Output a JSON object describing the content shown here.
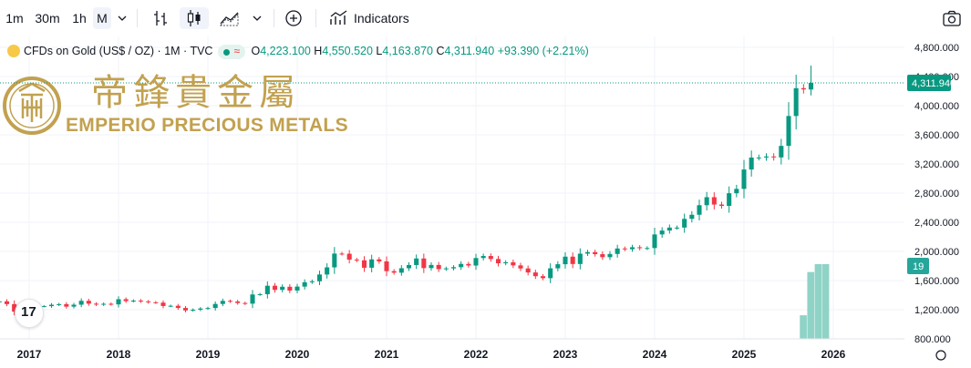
{
  "toolbar": {
    "interval_1m": "1m",
    "interval_30m": "30m",
    "interval_1h": "1h",
    "interval_M": "M",
    "indicators_label": "Indicators"
  },
  "legend": {
    "symbol": "CFDs on Gold (US$ / OZ) · 1M · TVC",
    "open_label": "O",
    "open": "4,223.100",
    "high_label": "H",
    "high": "4,550.520",
    "low_label": "L",
    "low": "4,163.870",
    "close_label": "C",
    "close": "4,311.940",
    "change": "+93.390 (+2.21%)"
  },
  "watermark": {
    "chinese": "帝鋒貴金屬",
    "english": "EMPERIO PRECIOUS METALS"
  },
  "colors": {
    "up": "#089981",
    "down": "#f23645",
    "volume": "#8fd3c7",
    "grid": "#f0f3fa",
    "gold": "#c2a14f",
    "price_line": "#089981"
  },
  "chart_data": {
    "type": "candlestick",
    "interval": "1M",
    "ylim": [
      800,
      4900
    ],
    "y_ticks": [
      "800.000",
      "1,200.000",
      "1,600.000",
      "2,000.000",
      "2,400.000",
      "2,800.000",
      "3,200.000",
      "3,600.000",
      "4,000.000",
      "4,400.000",
      "4,800.000"
    ],
    "y_tick_values": [
      800,
      1200,
      1600,
      2000,
      2400,
      2800,
      3200,
      3600,
      4000,
      4400,
      4800
    ],
    "x_start": "2016-09",
    "x_ticks": [
      "2017",
      "2018",
      "2019",
      "2020",
      "2021",
      "2022",
      "2023",
      "2024",
      "2025",
      "2026"
    ],
    "x_tick_months": [
      "2017-01",
      "2018-01",
      "2019-01",
      "2020-01",
      "2021-01",
      "2022-01",
      "2023-01",
      "2024-01",
      "2025-01",
      "2026-01"
    ],
    "last_price": "4,311.940",
    "volume_badge": "19",
    "closes": [
      1315,
      1277,
      1173,
      1152,
      1211,
      1249,
      1249,
      1268,
      1276,
      1242,
      1269,
      1322,
      1283,
      1270,
      1281,
      1273,
      1344,
      1318,
      1325,
      1314,
      1302,
      1297,
      1251,
      1254,
      1224,
      1190,
      1200,
      1216,
      1223,
      1279,
      1321,
      1313,
      1292,
      1283,
      1409,
      1413,
      1529,
      1472,
      1515,
      1463,
      1517,
      1577,
      1590,
      1683,
      1781,
      1970,
      1968,
      1887,
      1878,
      1776,
      1891,
      1863,
      1729,
      1708,
      1769,
      1813,
      1903,
      1771,
      1814,
      1757,
      1767,
      1784,
      1828,
      1806,
      1909,
      1937,
      1896,
      1837,
      1851,
      1808,
      1766,
      1711,
      1660,
      1633,
      1768,
      1824,
      1928,
      1827,
      1969,
      1990,
      1962,
      1921,
      1965,
      2040,
      2030,
      2057,
      2044,
      2046,
      2233,
      2286,
      2327,
      2327,
      2447,
      2503,
      2634,
      2744,
      2643,
      2625,
      2798,
      2858,
      3124,
      3288,
      3289,
      3303,
      3290,
      3448,
      3858,
      4240,
      4223,
      4312
    ],
    "opens_note": "",
    "volume": {
      "months": [
        "2025-09",
        "2025-10",
        "2025-11",
        "2025-12"
      ],
      "values": [
        6,
        17,
        19,
        19
      ]
    }
  }
}
